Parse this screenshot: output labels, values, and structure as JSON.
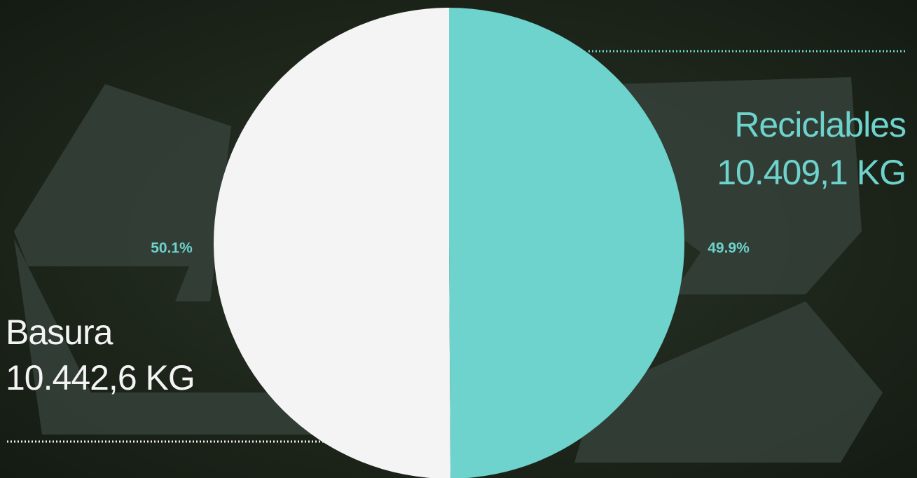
{
  "chart_data": {
    "type": "pie",
    "categories": [
      "Basura",
      "Reciclables"
    ],
    "values": [
      50.1,
      49.9
    ],
    "value_labels": [
      "50.1%",
      "49.9%"
    ],
    "colors": [
      "#f4f4f4",
      "#6dd3cc"
    ],
    "totals": [
      {
        "value": 10442.6,
        "label": "10.442,6 KG"
      },
      {
        "value": 10409.1,
        "label": "10.409,1 KG"
      }
    ]
  }
}
